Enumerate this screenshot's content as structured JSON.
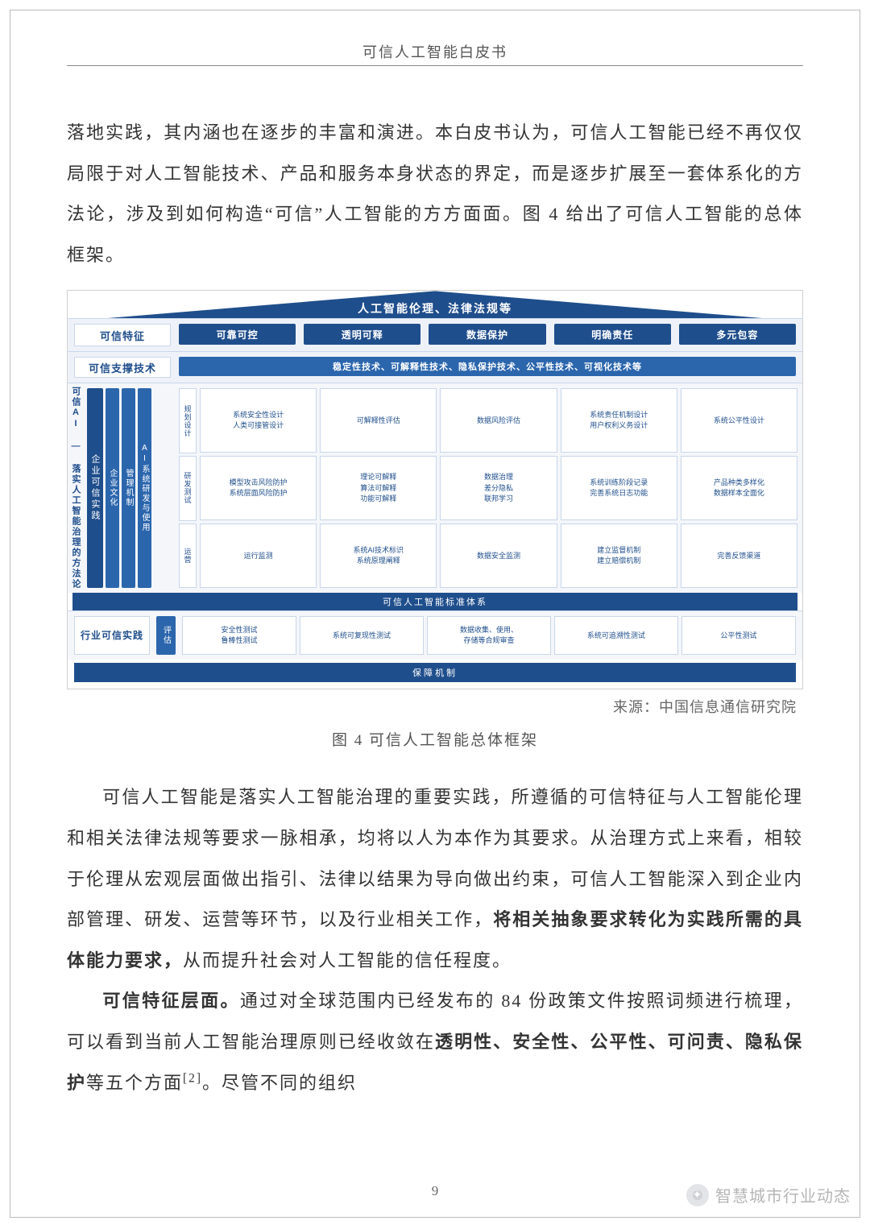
{
  "header": {
    "title": "可信人工智能白皮书"
  },
  "para1": "落地实践，其内涵也在逐步的丰富和演进。本白皮书认为，可信人工智能已经不再仅仅局限于对人工智能技术、产品和服务本身状态的界定，而是逐步扩展至一套体系化的方法论，涉及到如何构造“可信”人工智能的方方面面。图 4 给出了可信人工智能的总体框架。",
  "diagram": {
    "top_banner": "人工智能伦理、法律法规等",
    "features_label": "可信特征",
    "features": [
      "可靠可控",
      "透明可释",
      "数据保护",
      "明确责任",
      "多元包容"
    ],
    "tech_label": "可信支撑技术",
    "tech_bar": "稳定性技术、可解释性技术、隐私保护技术、公平性技术、可视化技术等",
    "side_title": "可信AI — 落实人工智能治理的方法论",
    "enterprise": {
      "label_outer": "企业可信实践",
      "bars": [
        "企业文化",
        "管理机制",
        "AI系统研发与使用"
      ],
      "phases": [
        "规划设计",
        "研发测试",
        "运营"
      ]
    },
    "grid": [
      [
        {
          "lines": [
            "系统安全性设计",
            "人类可接管设计"
          ]
        },
        {
          "lines": [
            "可解释性评估"
          ]
        },
        {
          "lines": [
            "数据风险评估"
          ]
        },
        {
          "lines": [
            "系统责任机制设计",
            "用户权利义务设计"
          ]
        },
        {
          "lines": [
            "系统公平性设计"
          ]
        }
      ],
      [
        {
          "lines": [
            "模型攻击风险防护",
            "系统层面风险防护"
          ]
        },
        {
          "lines": [
            "理论可解释",
            "算法可解释",
            "功能可解释"
          ]
        },
        {
          "lines": [
            "数据治理",
            "差分隐私",
            "联邦学习"
          ]
        },
        {
          "lines": [
            "系统训练阶段记录",
            "完善系统日志功能"
          ]
        },
        {
          "lines": [
            "产品种类多样化",
            "数据样本全面化"
          ]
        }
      ],
      [
        {
          "lines": [
            "运行监测"
          ]
        },
        {
          "lines": [
            "系统AI技术标识",
            "系统原理阐释"
          ]
        },
        {
          "lines": [
            "数据安全监测"
          ]
        },
        {
          "lines": [
            "建立监督机制",
            "建立赔偿机制"
          ]
        },
        {
          "lines": [
            "完善反馈渠道"
          ]
        }
      ]
    ],
    "std_bar": "可信人工智能标准体系",
    "industry": {
      "label": "行业可信实践",
      "eval": "评估",
      "cells": [
        {
          "lines": [
            "安全性测试",
            "鲁棒性测试"
          ]
        },
        {
          "lines": [
            "系统可复现性测试"
          ]
        },
        {
          "lines": [
            "数据收集、使用、",
            "存储等合规审查"
          ]
        },
        {
          "lines": [
            "系统可追溯性测试"
          ]
        },
        {
          "lines": [
            "公平性测试"
          ]
        }
      ],
      "mechanism": "保障机制"
    }
  },
  "source": "来源：中国信息通信研究院",
  "caption": "图 4  可信人工智能总体框架",
  "para2_a": "可信人工智能是落实人工智能治理的重要实践，所遵循的可信特征与人工智能伦理和相关法律法规等要求一脉相承，均将以人为本作为其要求。从治理方式上来看，相较于伦理从宏观层面做出指引、法律以结果为导向做出约束，可信人工智能深入到企业内部管理、研发、运营等环节，以及行业相关工作，",
  "para2_b": "将相关抽象要求转化为实践所需的具体能力要求，",
  "para2_c": "从而提升社会对人工智能的信任程度。",
  "para3_a": "可信特征层面。",
  "para3_b": "通过对全球范围内已经发布的 84 份政策文件按照词频进行梳理，可以看到当前人工智能治理原则已经收敛在",
  "para3_c": "透明性、安全性、公平性、可问责、隐私保护",
  "para3_d": "等五个方面",
  "para3_ref": "[2]",
  "para3_e": "。尽管不同的组织",
  "page_number": "9",
  "watermark": "智慧城市行业动态",
  "colors": {
    "brand": "#1f4e8c",
    "brand_light": "#2b66ad",
    "border": "#c9d7ea",
    "bg_panel": "#eef2f8"
  }
}
